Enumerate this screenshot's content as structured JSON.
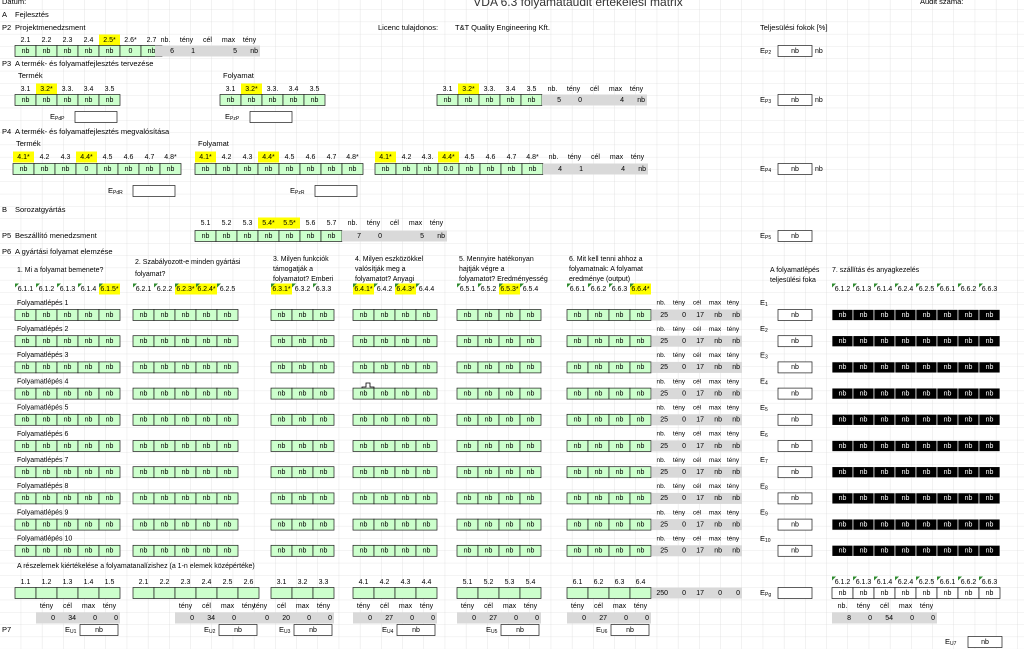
{
  "header": {
    "date_label": "Dátum:",
    "title": "VDA 6.3 folyamataudit értékelési mátrix",
    "audit_label": "Audit száma:",
    "licence_label": "Licenc tulajdonos:",
    "licence_value": "T&T Quality Engineering Kft.",
    "fulfilment_label": "Teljesülési fokok [%]"
  },
  "e_symbol": "E",
  "a": {
    "code": "A",
    "title": "Fejlesztés"
  },
  "p2": {
    "code": "P2",
    "title": "Projektmenedzsment",
    "items": [
      "2.1",
      "2.2",
      "2.3",
      "2.4",
      "2.5*",
      "2.6*",
      "2.7"
    ],
    "highlight": [
      4
    ],
    "answers": [
      "nb",
      "nb",
      "nb",
      "nb",
      "nb",
      0,
      "nb"
    ],
    "summary_headers": [
      "nb.",
      "tény",
      "cél",
      "max",
      "tény"
    ],
    "summary": {
      "count": 6,
      "actual": 1,
      "max": 5,
      "score": "nb"
    },
    "e_sub": "P2",
    "fulfilment": "nb",
    "fulfilment_extra": "nb"
  },
  "p3": {
    "code": "P3",
    "title": "A termék- és folyamatfejlesztés tervezése",
    "groups": [
      {
        "label": "Termék",
        "items": [
          "3.1",
          "3.2*",
          "3.3.",
          "3.4",
          "3.5"
        ],
        "highlight": [
          1
        ],
        "answers": [
          "nb",
          "nb",
          "nb",
          "nb",
          "nb"
        ]
      },
      {
        "label": "Folyamat",
        "items": [
          "3.1",
          "3.2*",
          "3.3.",
          "3.4",
          "3.5"
        ],
        "highlight": [
          1
        ],
        "answers": [
          "nb",
          "nb",
          "nb",
          "nb",
          "nb"
        ]
      },
      {
        "items": [
          "3.1",
          "3.2*",
          "3.3.",
          "3.4",
          "3.5"
        ],
        "highlight": [
          1
        ],
        "answers": [
          "nb",
          "nb",
          "nb",
          "nb",
          "nb"
        ]
      }
    ],
    "summary_headers": [
      "nb.",
      "tény",
      "cél",
      "max",
      "tény"
    ],
    "summary": {
      "count": 5,
      "actual": 0,
      "max": 4,
      "score": "nb"
    },
    "e_sub": "P3",
    "fulfilment": "nb",
    "fulfilment_extra": "nb",
    "e_boxes": [
      "PdP",
      "PzP"
    ]
  },
  "p4": {
    "code": "P4",
    "title": "A termék- és folyamatfejlesztés megvalósítása",
    "groups": [
      {
        "label": "Termék",
        "items": [
          "4.1*",
          "4.2",
          "4.3",
          "4.4*",
          "4.5",
          "4.6",
          "4.7",
          "4.8*"
        ],
        "highlight": [
          0,
          3
        ],
        "answers": [
          "nb",
          "nb",
          "nb",
          0,
          "nb",
          "nb",
          "nb",
          "nb"
        ]
      },
      {
        "label": "Folyamat",
        "items": [
          "4.1*",
          "4.2",
          "4.3",
          "4.4*",
          "4.5",
          "4.6",
          "4.7",
          "4.8*"
        ],
        "highlight": [
          0,
          3
        ],
        "answers": [
          "nb",
          "nb",
          "nb",
          "nb",
          "nb",
          "nb",
          "nb",
          "nb"
        ]
      },
      {
        "items": [
          "4.1*",
          "4.2",
          "4.3.",
          "4.4*",
          "4.5",
          "4.6",
          "4.7",
          "4.8*"
        ],
        "highlight": [
          0,
          3
        ],
        "answers": [
          "nb",
          "nb",
          "nb",
          "0.0",
          "nb",
          "nb",
          "nb",
          "nb"
        ]
      }
    ],
    "summary_headers": [
      "nb.",
      "tény",
      "cél",
      "max",
      "tény"
    ],
    "summary": {
      "count": 4,
      "actual": 1,
      "max": 4,
      "score": "nb"
    },
    "e_sub": "P4",
    "fulfilment": "nb",
    "fulfilment_extra": "nb",
    "e_boxes": [
      "PdR",
      "PzR"
    ]
  },
  "b": {
    "code": "B",
    "title": "Sorozatgyártás"
  },
  "p5": {
    "code": "P5",
    "title": "Beszállító menedzsment",
    "items": [
      "5.1",
      "5.2",
      "5.3",
      "5.4*",
      "5.5*",
      "5.6",
      "5.7"
    ],
    "highlight": [
      3,
      4
    ],
    "answers": [
      "nb",
      "nb",
      "nb",
      "nb",
      "nb",
      "nb",
      "nb"
    ],
    "summary_headers": [
      "nb.",
      "tény",
      "cél",
      "max",
      "tény"
    ],
    "summary": {
      "count": 7,
      "actual": 0,
      "max": 5,
      "score": "nb"
    },
    "e_sub": "P5",
    "fulfilment": "nb"
  },
  "p6": {
    "code": "P6",
    "title": "A gyártási folyamat elemzése",
    "questions": [
      [
        "1. Mi a folyamat bemenete?"
      ],
      [
        "2. Szabályozott-e minden gyártási",
        "folyamat?"
      ],
      [
        "3. Milyen funkciók",
        "támogatják a",
        "folyamatot? Emberi"
      ],
      [
        "4. Milyen eszközökkel",
        "valósítják meg a",
        "folyamatot? Anyagi"
      ],
      [
        "5. Mennyire hatékonyan",
        "hajtják végre a",
        "folyamatot? Eredményesség"
      ],
      [
        "6. Mit kell tenni ahhoz a",
        "folyamatnak: A folyamat",
        "eredménye (output)"
      ]
    ],
    "groups": [
      {
        "items": [
          "6.1.1",
          "6.1.2",
          "6.1.3",
          "6.1.4",
          "6.1.5*"
        ],
        "highlight": [
          4
        ]
      },
      {
        "items": [
          "6.2.1",
          "6.2.2",
          "6.2.3*",
          "6.2.4*",
          "6.2.5"
        ],
        "highlight": [
          2,
          3
        ]
      },
      {
        "items": [
          "6.3.1*",
          "6.3.2",
          "6.3.3"
        ],
        "highlight": [
          0
        ]
      },
      {
        "items": [
          "6.4.1*",
          "6.4.2",
          "6.4.3*",
          "6.4.4"
        ],
        "highlight": [
          0,
          2
        ]
      },
      {
        "items": [
          "6.5.1",
          "6.5.2",
          "6.5.3*",
          "6.5.4"
        ],
        "highlight": [
          2
        ]
      },
      {
        "items": [
          "6.6.1",
          "6.6.2",
          "6.6.3",
          "6.6.4*"
        ],
        "highlight": [
          3
        ]
      }
    ],
    "summary_headers": [
      "nb.",
      "tény",
      "cél",
      "max",
      "tény"
    ],
    "fulfilment_title": [
      "A folyamatlépés",
      "teljesülési foka"
    ],
    "transport_title": "7. szállítás és anyagkezelés",
    "transport_headers": [
      "6.1.2",
      "6.1.3",
      "6.1.4",
      "6.2.4",
      "6.2.5",
      "6.6.1",
      "6.6.2",
      "6.6.3"
    ],
    "steps": [
      {
        "label": "Folyamatlépés 1",
        "answers": [
          [
            "nb",
            "nb",
            "nb",
            "nb",
            "nb"
          ],
          [
            "nb",
            "nb",
            "nb",
            "nb",
            "nb"
          ],
          [
            "nb",
            "nb",
            "nb"
          ],
          [
            "nb",
            "nb",
            "nb",
            "nb"
          ],
          [
            "nb",
            "nb",
            "nb",
            "nb"
          ],
          [
            "nb",
            "nb",
            "nb",
            "nb"
          ]
        ],
        "summary": [
          25,
          0,
          17,
          "nb",
          "nb"
        ],
        "e_sub": "1",
        "fulfilment": "nb",
        "transport": [
          "nb",
          "nb",
          "nb",
          "nb",
          "nb",
          "nb",
          "nb",
          "nb"
        ]
      },
      {
        "label": "Folyamatlépés 2",
        "answers": [
          [
            "nb",
            "nb",
            "nb",
            "nb",
            "nb"
          ],
          [
            "nb",
            "nb",
            "nb",
            "nb",
            "nb"
          ],
          [
            "nb",
            "nb",
            "nb"
          ],
          [
            "nb",
            "nb",
            "nb",
            "nb"
          ],
          [
            "nb",
            "nb",
            "nb",
            "nb"
          ],
          [
            "nb",
            "nb",
            "nb",
            "nb"
          ]
        ],
        "summary": [
          25,
          0,
          17,
          "nb",
          "nb"
        ],
        "e_sub": "2",
        "fulfilment": "nb",
        "transport": [
          "nb",
          "nb",
          "nb",
          "nb",
          "nb",
          "nb",
          "nb",
          "nb"
        ]
      },
      {
        "label": "Folyamatlépés 3",
        "answers": [
          [
            "nb",
            "nb",
            "nb",
            "nb",
            "nb"
          ],
          [
            "nb",
            "nb",
            "nb",
            "nb",
            "nb"
          ],
          [
            "nb",
            "nb",
            "nb"
          ],
          [
            "nb",
            "nb",
            "nb",
            "nb"
          ],
          [
            "nb",
            "nb",
            "nb",
            "nb"
          ],
          [
            "nb",
            "nb",
            "nb",
            "nb"
          ]
        ],
        "summary": [
          25,
          0,
          17,
          "nb",
          "nb"
        ],
        "e_sub": "3",
        "fulfilment": "nb",
        "transport": [
          "nb",
          "nb",
          "nb",
          "nb",
          "nb",
          "nb",
          "nb",
          "nb"
        ]
      },
      {
        "label": "Folyamatlépés 4",
        "answers": [
          [
            "nb",
            "nb",
            "nb",
            "nb",
            "nb"
          ],
          [
            "nb",
            "nb",
            "nb",
            "nb",
            "nb"
          ],
          [
            "nb",
            "nb",
            "nb"
          ],
          [
            "nb",
            "nb",
            "nb",
            "nb"
          ],
          [
            "nb",
            "nb",
            "nb",
            "nb"
          ],
          [
            "nb",
            "nb",
            "nb",
            "nb"
          ]
        ],
        "summary": [
          25,
          0,
          17,
          "nb",
          "nb"
        ],
        "e_sub": "4",
        "fulfilment": "nb",
        "transport": [
          "nb",
          "nb",
          "nb",
          "nb",
          "nb",
          "nb",
          "nb",
          "nb"
        ]
      },
      {
        "label": "Folyamatlépés 5",
        "answers": [
          [
            "nb",
            "nb",
            "nb",
            "nb",
            "nb"
          ],
          [
            "nb",
            "nb",
            "nb",
            "nb",
            "nb"
          ],
          [
            "nb",
            "nb",
            "nb"
          ],
          [
            "nb",
            "nb",
            "nb",
            "nb"
          ],
          [
            "nb",
            "nb",
            "nb",
            "nb"
          ],
          [
            "nb",
            "nb",
            "nb",
            "nb"
          ]
        ],
        "summary": [
          25,
          0,
          17,
          "nb",
          "nb"
        ],
        "e_sub": "5",
        "fulfilment": "nb",
        "transport": [
          "nb",
          "nb",
          "nb",
          "nb",
          "nb",
          "nb",
          "nb",
          "nb"
        ]
      },
      {
        "label": "Folyamatlépés 6",
        "answers": [
          [
            "nb",
            "nb",
            "nb",
            "nb",
            "nb"
          ],
          [
            "nb",
            "nb",
            "nb",
            "nb",
            "nb"
          ],
          [
            "nb",
            "nb",
            "nb"
          ],
          [
            "nb",
            "nb",
            "nb",
            "nb"
          ],
          [
            "nb",
            "nb",
            "nb",
            "nb"
          ],
          [
            "nb",
            "nb",
            "nb",
            "nb"
          ]
        ],
        "summary": [
          25,
          0,
          17,
          "nb",
          "nb"
        ],
        "e_sub": "6",
        "fulfilment": "nb",
        "transport": [
          "nb",
          "nb",
          "nb",
          "nb",
          "nb",
          "nb",
          "nb",
          "nb"
        ]
      },
      {
        "label": "Folyamatlépés 7",
        "answers": [
          [
            "nb",
            "nb",
            "nb",
            "nb",
            "nb"
          ],
          [
            "nb",
            "nb",
            "nb",
            "nb",
            "nb"
          ],
          [
            "nb",
            "nb",
            "nb"
          ],
          [
            "nb",
            "nb",
            "nb",
            "nb"
          ],
          [
            "nb",
            "nb",
            "nb",
            "nb"
          ],
          [
            "nb",
            "nb",
            "nb",
            "nb"
          ]
        ],
        "summary": [
          25,
          0,
          17,
          "nb",
          "nb"
        ],
        "e_sub": "7",
        "fulfilment": "nb",
        "transport": [
          "nb",
          "nb",
          "nb",
          "nb",
          "nb",
          "nb",
          "nb",
          "nb"
        ]
      },
      {
        "label": "Folyamatlépés 8",
        "answers": [
          [
            "nb",
            "nb",
            "nb",
            "nb",
            "nb"
          ],
          [
            "nb",
            "nb",
            "nb",
            "nb",
            "nb"
          ],
          [
            "nb",
            "nb",
            "nb"
          ],
          [
            "nb",
            "nb",
            "nb",
            "nb"
          ],
          [
            "nb",
            "nb",
            "nb",
            "nb"
          ],
          [
            "nb",
            "nb",
            "nb",
            "nb"
          ]
        ],
        "summary": [
          25,
          0,
          17,
          "nb",
          "nb"
        ],
        "e_sub": "8",
        "fulfilment": "nb",
        "transport": [
          "nb",
          "nb",
          "nb",
          "nb",
          "nb",
          "nb",
          "nb",
          "nb"
        ]
      },
      {
        "label": "Folyamatlépés 9",
        "answers": [
          [
            "nb",
            "nb",
            "nb",
            "nb",
            "nb"
          ],
          [
            "nb",
            "nb",
            "nb",
            "nb",
            "nb"
          ],
          [
            "nb",
            "nb",
            "nb"
          ],
          [
            "nb",
            "nb",
            "nb",
            "nb"
          ],
          [
            "nb",
            "nb",
            "nb",
            "nb"
          ],
          [
            "nb",
            "nb",
            "nb",
            "nb"
          ]
        ],
        "summary": [
          25,
          0,
          17,
          "nb",
          "nb"
        ],
        "e_sub": "9",
        "fulfilment": "nb",
        "transport": [
          "nb",
          "nb",
          "nb",
          "nb",
          "nb",
          "nb",
          "nb",
          "nb"
        ]
      },
      {
        "label": "Folyamatlépés 10",
        "answers": [
          [
            "nb",
            "nb",
            "nb",
            "nb",
            "nb"
          ],
          [
            "nb",
            "nb",
            "nb",
            "nb",
            "nb"
          ],
          [
            "nb",
            "nb",
            "nb"
          ],
          [
            "nb",
            "nb",
            "nb",
            "nb"
          ],
          [
            "nb",
            "nb",
            "nb",
            "nb"
          ],
          [
            "nb",
            "nb",
            "nb",
            "nb"
          ]
        ],
        "summary": [
          25,
          0,
          17,
          "nb",
          "nb"
        ],
        "e_sub": "10",
        "fulfilment": "nb",
        "transport": [
          "nb",
          "nb",
          "nb",
          "nb",
          "nb",
          "nb",
          "nb",
          "nb"
        ]
      }
    ]
  },
  "eval": {
    "title": "A részelemek kiértékelése a folyamatanalízishez (a 1-n elemek középértéke)",
    "groups": [
      [
        "1.1",
        "1.2",
        "1.3",
        "1.4",
        "1.5"
      ],
      [
        "2.1",
        "2.2",
        "2.3",
        "2.4",
        "2.5",
        "2.6"
      ],
      [
        "3.1",
        "3.2",
        "3.3"
      ],
      [
        "4.1",
        "4.2",
        "4.3",
        "4.4"
      ],
      [
        "5.1",
        "5.2",
        "5.3",
        "5.4"
      ],
      [
        "6.1",
        "6.2",
        "6.3",
        "6.4"
      ]
    ],
    "stat_headers": [
      "tény",
      "cél",
      "max",
      "tény"
    ],
    "stats": [
      [
        0,
        34,
        0,
        0
      ],
      [
        0,
        34,
        0,
        0
      ],
      [
        0,
        20,
        0,
        0
      ],
      [
        0,
        27,
        0,
        0
      ],
      [
        0,
        27,
        0,
        0
      ],
      [
        0,
        27,
        0,
        0
      ]
    ],
    "e_subs": [
      "U1",
      "U2",
      "U3",
      "U4",
      "U5",
      "U6"
    ],
    "e_values": [
      "nb",
      "nb",
      "nb",
      "nb",
      "nb",
      "nb"
    ],
    "summary": [
      250,
      0,
      17,
      0,
      0
    ],
    "e_sub": "Pg",
    "transport": [
      "nb",
      "nb",
      "nb",
      "nb",
      "nb",
      "nb",
      "nb",
      "nb"
    ],
    "transport_summary_headers": [
      "nb.",
      "tény",
      "cél",
      "max",
      "tény"
    ],
    "transport_summary": [
      8,
      0,
      54,
      0,
      0
    ],
    "p7_code": "P7",
    "u7_sub": "U7",
    "u7_value": "nb"
  }
}
